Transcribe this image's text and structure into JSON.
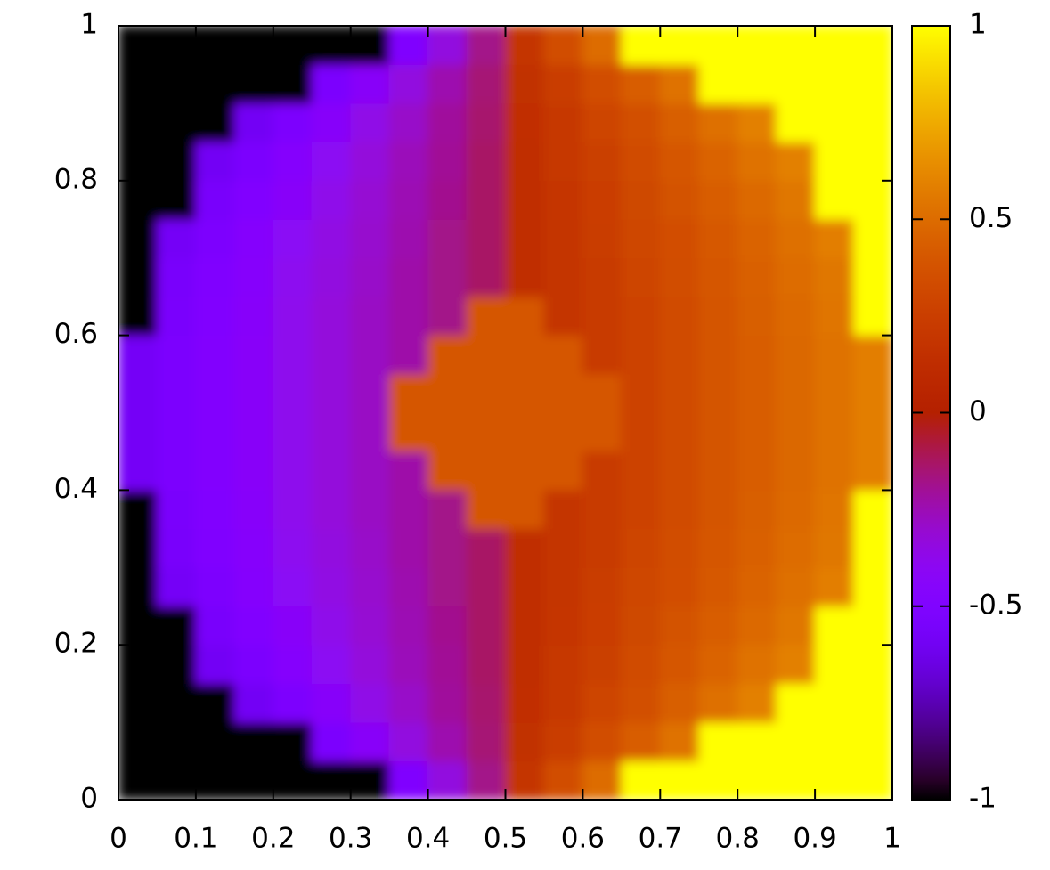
{
  "chart_data": {
    "type": "heatmap",
    "xlim": [
      0,
      1
    ],
    "ylim": [
      0,
      1
    ],
    "xticks": [
      0,
      0.1,
      0.2,
      0.3,
      0.4,
      0.5,
      0.6,
      0.7,
      0.8,
      0.9,
      1
    ],
    "yticks": [
      0,
      0.2,
      0.4,
      0.6,
      0.8,
      1
    ],
    "zlim": [
      -1,
      1
    ],
    "cbticks": [
      -1,
      -0.5,
      0,
      0.5,
      1
    ],
    "colormap": "rgbformulae 7,5,15",
    "z": [
      [
        -1,
        -1,
        -1,
        -1,
        -1,
        -1,
        -1,
        -0.5,
        -0.34,
        -0.18,
        0.18,
        0.34,
        0.5,
        1,
        1,
        1,
        1,
        1,
        1,
        1
      ],
      [
        -1,
        -1,
        -1,
        -1,
        -1,
        -0.53,
        -0.43,
        -0.34,
        -0.24,
        -0.15,
        0.15,
        0.24,
        0.34,
        0.43,
        0.53,
        1,
        1,
        1,
        1,
        1
      ],
      [
        -1,
        -1,
        -1,
        -0.59,
        -0.52,
        -0.44,
        -0.36,
        -0.29,
        -0.21,
        -0.14,
        0.14,
        0.21,
        0.29,
        0.36,
        0.44,
        0.52,
        0.59,
        1,
        1,
        1
      ],
      [
        -1,
        -1,
        -0.59,
        -0.53,
        -0.46,
        -0.4,
        -0.33,
        -0.26,
        -0.2,
        -0.13,
        0.13,
        0.2,
        0.26,
        0.33,
        0.4,
        0.46,
        0.53,
        0.59,
        1,
        1
      ],
      [
        -1,
        -1,
        -0.55,
        -0.49,
        -0.43,
        -0.37,
        -0.31,
        -0.25,
        -0.19,
        -0.13,
        0.13,
        0.19,
        0.25,
        0.31,
        0.37,
        0.43,
        0.49,
        0.55,
        1,
        1
      ],
      [
        -1,
        -0.58,
        -0.52,
        -0.46,
        -0.41,
        -0.35,
        -0.3,
        -0.24,
        -0.18,
        -0.13,
        0.13,
        0.18,
        0.24,
        0.3,
        0.35,
        0.41,
        0.46,
        0.52,
        0.58,
        1
      ],
      [
        -1,
        -0.55,
        -0.5,
        -0.45,
        -0.39,
        -0.34,
        -0.29,
        -0.23,
        -0.18,
        -0.13,
        0.13,
        0.18,
        0.23,
        0.29,
        0.34,
        0.39,
        0.45,
        0.5,
        0.55,
        1
      ],
      [
        -1,
        -0.54,
        -0.49,
        -0.44,
        -0.38,
        -0.33,
        -0.28,
        -0.23,
        -0.18,
        0.4,
        0.4,
        0.18,
        0.23,
        0.28,
        0.33,
        0.38,
        0.44,
        0.49,
        0.54,
        1
      ],
      [
        -0.58,
        -0.53,
        -0.48,
        -0.43,
        -0.38,
        -0.33,
        -0.28,
        -0.23,
        0.4,
        0.4,
        0.4,
        0.4,
        0.23,
        0.28,
        0.33,
        0.38,
        0.43,
        0.48,
        0.53,
        0.58
      ],
      [
        -0.58,
        -0.53,
        -0.48,
        -0.43,
        -0.38,
        -0.33,
        -0.28,
        0.4,
        0.4,
        0.4,
        0.4,
        0.4,
        0.4,
        0.28,
        0.33,
        0.38,
        0.43,
        0.48,
        0.53,
        0.58
      ],
      [
        -0.58,
        -0.53,
        -0.48,
        -0.43,
        -0.38,
        -0.33,
        -0.28,
        0.4,
        0.4,
        0.4,
        0.4,
        0.4,
        0.4,
        0.28,
        0.33,
        0.38,
        0.43,
        0.48,
        0.53,
        0.58
      ],
      [
        -0.58,
        -0.53,
        -0.48,
        -0.43,
        -0.38,
        -0.33,
        -0.28,
        -0.23,
        0.4,
        0.4,
        0.4,
        0.4,
        0.23,
        0.28,
        0.33,
        0.38,
        0.43,
        0.48,
        0.53,
        0.58
      ],
      [
        -1,
        -0.54,
        -0.49,
        -0.44,
        -0.38,
        -0.33,
        -0.28,
        -0.23,
        -0.18,
        0.4,
        0.4,
        0.18,
        0.23,
        0.28,
        0.33,
        0.38,
        0.44,
        0.49,
        0.54,
        1
      ],
      [
        -1,
        -0.55,
        -0.5,
        -0.45,
        -0.39,
        -0.34,
        -0.29,
        -0.23,
        -0.18,
        -0.13,
        0.13,
        0.18,
        0.23,
        0.29,
        0.34,
        0.39,
        0.45,
        0.5,
        0.55,
        1
      ],
      [
        -1,
        -0.58,
        -0.52,
        -0.46,
        -0.41,
        -0.35,
        -0.3,
        -0.24,
        -0.18,
        -0.13,
        0.13,
        0.18,
        0.24,
        0.3,
        0.35,
        0.41,
        0.46,
        0.52,
        0.58,
        1
      ],
      [
        -1,
        -1,
        -0.55,
        -0.49,
        -0.43,
        -0.37,
        -0.31,
        -0.25,
        -0.19,
        -0.13,
        0.13,
        0.19,
        0.25,
        0.31,
        0.37,
        0.43,
        0.49,
        0.55,
        1,
        1
      ],
      [
        -1,
        -1,
        -0.59,
        -0.53,
        -0.46,
        -0.4,
        -0.33,
        -0.26,
        -0.2,
        -0.13,
        0.13,
        0.2,
        0.26,
        0.33,
        0.4,
        0.46,
        0.53,
        0.59,
        1,
        1
      ],
      [
        -1,
        -1,
        -1,
        -0.59,
        -0.52,
        -0.44,
        -0.36,
        -0.29,
        -0.21,
        -0.14,
        0.14,
        0.21,
        0.29,
        0.36,
        0.44,
        0.52,
        0.59,
        1,
        1,
        1
      ],
      [
        -1,
        -1,
        -1,
        -1,
        -1,
        -0.53,
        -0.43,
        -0.34,
        -0.24,
        -0.15,
        0.15,
        0.24,
        0.34,
        0.43,
        0.53,
        1,
        1,
        1,
        1,
        1
      ],
      [
        -1,
        -1,
        -1,
        -1,
        -1,
        -1,
        -1,
        -0.5,
        -0.34,
        -0.18,
        0.18,
        0.34,
        0.5,
        1,
        1,
        1,
        1,
        1,
        1,
        1
      ]
    ]
  }
}
